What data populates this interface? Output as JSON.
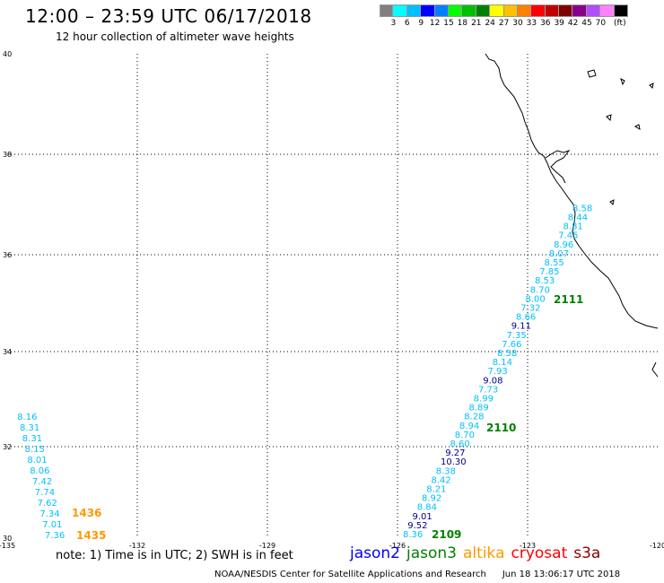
{
  "header": {
    "title": "12:00 – 23:59 UTC 06/17/2018",
    "subtitle": "12 hour collection of altimeter wave heights"
  },
  "legend": {
    "colors": [
      "#808080",
      "#00ffff",
      "#00bfff",
      "#0000ff",
      "#0080ff",
      "#00ff00",
      "#00c000",
      "#008000",
      "#ffff00",
      "#ffc000",
      "#ff8000",
      "#ff0000",
      "#c00000",
      "#800000",
      "#8b008b",
      "#b44cff",
      "#ff80ff",
      "#000000"
    ],
    "labels": [
      "3",
      "6",
      "9",
      "12",
      "15",
      "18",
      "21",
      "24",
      "27",
      "30",
      "33",
      "36",
      "39",
      "42",
      "45",
      "70"
    ],
    "unit": "(ft)"
  },
  "map": {
    "x_ticks": [
      "-135",
      "-132",
      "-129",
      "-126",
      "-123",
      "-120"
    ],
    "y_ticks": [
      "40",
      "38",
      "36",
      "34",
      "32",
      "30"
    ],
    "lon_range": [
      -135,
      -120
    ],
    "lat_range": [
      30,
      40
    ]
  },
  "tracks": [
    {
      "values": [
        "8.36",
        "9.52",
        "9.01",
        "8.84",
        "8.92",
        "8.21",
        "8.42",
        "8.38",
        "10.30",
        "9.27",
        "8.60",
        "8.70",
        "8.94",
        "8.28",
        "8.89",
        "8.99",
        "7.73",
        "9.08",
        "7.93",
        "8.14",
        "8.58",
        "7.66",
        "7.35",
        "9.11",
        "8.66",
        "7.32",
        "8.00",
        "8.70",
        "8.53",
        "7.85",
        "8.55",
        "8.07",
        "8.96",
        "7.45",
        "8.81",
        "8.44",
        "8.58"
      ],
      "colors": [
        "#00bfff",
        "#00008b",
        "#00008b",
        "#00bfff",
        "#00bfff",
        "#00bfff",
        "#00bfff",
        "#00bfff",
        "#00008b",
        "#00008b",
        "#00bfff",
        "#00bfff",
        "#00bfff",
        "#00bfff",
        "#00bfff",
        "#00bfff",
        "#00bfff",
        "#00008b",
        "#00bfff",
        "#00bfff",
        "#00bfff",
        "#00bfff",
        "#00bfff",
        "#00008b",
        "#00bfff",
        "#00bfff",
        "#00bfff",
        "#00bfff",
        "#00bfff",
        "#00bfff",
        "#00bfff",
        "#00bfff",
        "#00bfff",
        "#00bfff",
        "#00bfff",
        "#00bfff",
        "#00bfff"
      ]
    },
    {
      "values": [
        "7.36",
        "7.01",
        "7.34",
        "7.62",
        "7.74",
        "7.42",
        "8.06",
        "8.01",
        "8.15",
        "8.31",
        "8.31",
        "8.16"
      ],
      "colors": [
        "#00bfff",
        "#00bfff",
        "#00bfff",
        "#00bfff",
        "#00bfff",
        "#00bfff",
        "#00bfff",
        "#00bfff",
        "#00bfff",
        "#00bfff",
        "#00bfff",
        "#00bfff"
      ]
    }
  ],
  "pass_labels": [
    {
      "text": "2109",
      "color": "#008000"
    },
    {
      "text": "2110",
      "color": "#008000"
    },
    {
      "text": "2111",
      "color": "#008000"
    },
    {
      "text": "1435",
      "color": "#ff9900"
    },
    {
      "text": "1436",
      "color": "#ff9900"
    }
  ],
  "footer": {
    "note": "note: 1) Time is in UTC; 2) SWH is in feet",
    "satellites": [
      {
        "name": "jason2",
        "color": "#0000ff"
      },
      {
        "name": "jason3",
        "color": "#008000"
      },
      {
        "name": "altika",
        "color": "#ff9900"
      },
      {
        "name": "cryosat",
        "color": "#ff0000"
      },
      {
        "name": "s3a",
        "color": "#8b0000"
      }
    ],
    "credit": "NOAA/NESDIS Center for Satellite Applications and Research",
    "timestamp": "Jun 18 13:06:17 UTC 2018"
  }
}
